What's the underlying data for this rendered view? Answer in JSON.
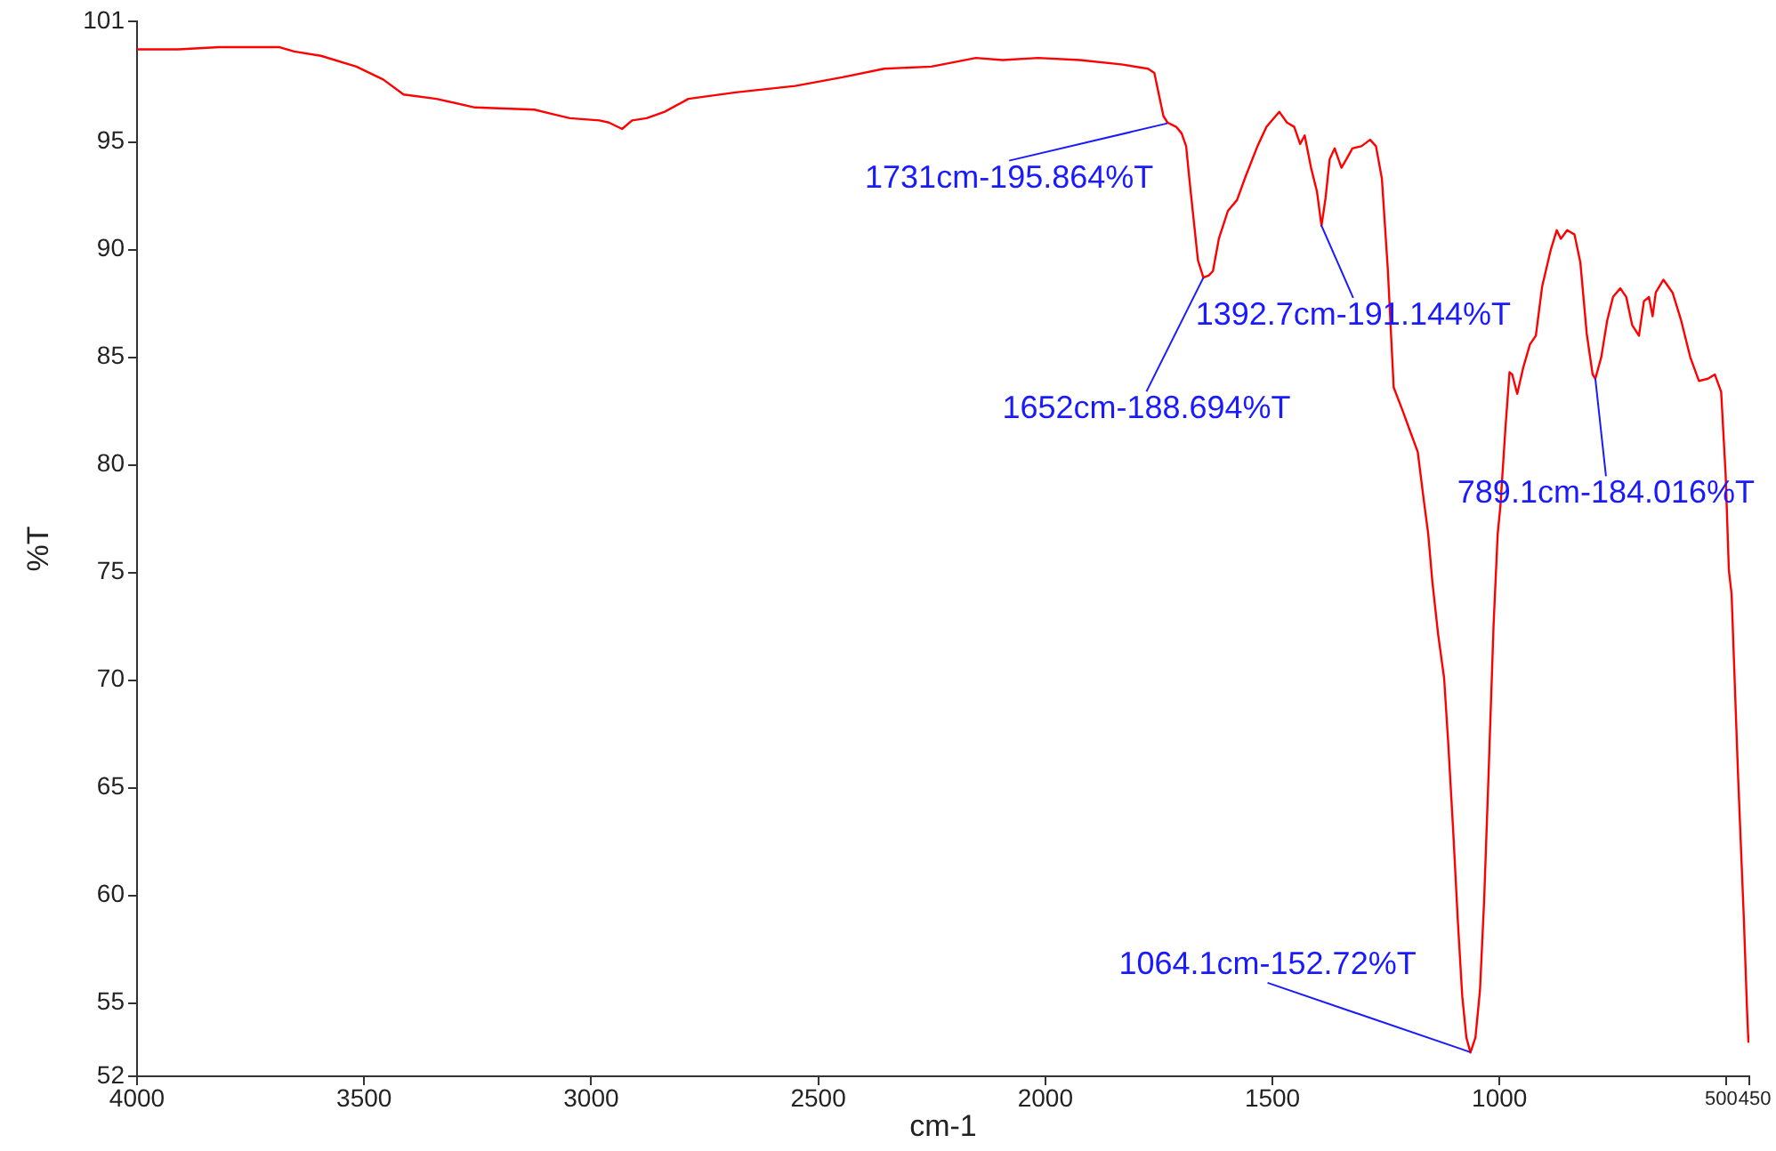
{
  "chart_data": {
    "type": "line",
    "xlabel": "cm-1",
    "ylabel": "%T",
    "x": [
      4000,
      3909,
      3820,
      3752,
      3686,
      3654,
      3595,
      3517,
      3458,
      3413,
      3341,
      3256,
      3125,
      3086,
      3047,
      2982,
      2961,
      2932,
      2910,
      2878,
      2838,
      2786,
      2682,
      2551,
      2447,
      2355,
      2251,
      2153,
      2094,
      2016,
      1924,
      1833,
      1774,
      1760,
      1748,
      1740,
      1731,
      1712,
      1700,
      1690,
      1683,
      1674,
      1664,
      1652,
      1640,
      1631,
      1618,
      1598,
      1578,
      1559,
      1533,
      1513,
      1485,
      1468,
      1452,
      1439,
      1429,
      1415,
      1402,
      1392,
      1383,
      1374,
      1363,
      1348,
      1337,
      1324,
      1304,
      1285,
      1272,
      1259,
      1246,
      1233,
      1213,
      1194,
      1180,
      1167,
      1157,
      1148,
      1135,
      1122,
      1113,
      1102,
      1092,
      1082,
      1073,
      1064,
      1053,
      1043,
      1034,
      1024,
      1013,
      1004,
      998,
      987,
      978,
      972,
      961,
      948,
      933,
      920,
      906,
      887,
      874,
      865,
      851,
      835,
      822,
      808,
      795,
      789,
      776,
      763,
      750,
      734,
      721,
      708,
      693,
      682,
      671,
      663,
      656,
      639,
      619,
      600,
      580,
      561,
      541,
      526,
      512,
      502,
      495,
      489,
      475,
      462,
      455,
      452,
      450
    ],
    "series": [
      {
        "color": "#ff0000",
        "values": [
          99.3,
          99.3,
          99.4,
          99.4,
          99.4,
          99.2,
          99.0,
          98.5,
          97.9,
          97.2,
          97.0,
          96.6,
          96.5,
          96.3,
          96.1,
          96.0,
          95.9,
          95.6,
          96.0,
          96.1,
          96.4,
          97.0,
          97.3,
          97.6,
          98.0,
          98.4,
          98.5,
          98.9,
          98.8,
          98.9,
          98.8,
          98.6,
          98.4,
          98.2,
          97.0,
          96.2,
          95.9,
          95.7,
          95.4,
          94.8,
          93.3,
          91.5,
          89.5,
          88.7,
          88.8,
          89.0,
          90.5,
          91.8,
          92.3,
          93.4,
          94.8,
          95.7,
          96.4,
          95.9,
          95.7,
          94.9,
          95.3,
          93.8,
          92.7,
          91.1,
          92.4,
          94.2,
          94.7,
          93.8,
          94.2,
          94.7,
          94.8,
          95.1,
          94.8,
          93.3,
          89.1,
          83.6,
          82.5,
          81.4,
          80.6,
          78.4,
          76.8,
          74.6,
          72.1,
          70.1,
          67.1,
          63.0,
          58.9,
          55.3,
          53.4,
          52.7,
          53.4,
          55.6,
          59.7,
          65.7,
          72.6,
          76.8,
          78.1,
          81.7,
          84.3,
          84.2,
          83.3,
          84.5,
          85.6,
          86.0,
          88.3,
          90.0,
          90.9,
          90.5,
          90.9,
          90.7,
          89.4,
          86.1,
          84.2,
          84.0,
          85.0,
          86.7,
          87.8,
          88.2,
          87.8,
          86.5,
          86.0,
          87.6,
          87.8,
          86.9,
          88.0,
          88.6,
          88.0,
          86.7,
          85.0,
          83.9,
          84.0,
          84.2,
          83.4,
          79.5,
          75.1,
          74.0,
          65.7,
          58.9,
          54.7,
          53.2,
          53.5
        ]
      }
    ],
    "xlim": [
      4000,
      450
    ],
    "xticks": [
      4000,
      3500,
      3000,
      2500,
      2000,
      1500,
      1000,
      500,
      450
    ],
    "ylim": [
      51.6,
      100.6
    ],
    "yticks": [
      {
        "value": 51.6,
        "label": "52"
      },
      55,
      60,
      65,
      70,
      75,
      80,
      85,
      90,
      95,
      {
        "value": 100.6,
        "label": "101"
      }
    ],
    "grid": false,
    "legend": false,
    "marker": "none",
    "annotations": [
      {
        "text": "1731cm-195.864%T",
        "x": 1731,
        "y": 95.864
      },
      {
        "text": "1652cm-188.694%T",
        "x": 1652,
        "y": 88.694
      },
      {
        "text": "1392.7cm-191.144%T",
        "x": 1392.7,
        "y": 91.144
      },
      {
        "text": "789.1cm-184.016%T",
        "x": 789.1,
        "y": 84.016
      },
      {
        "text": "1064.1cm-152.72%T",
        "x": 1064.1,
        "y": 52.72
      }
    ]
  }
}
